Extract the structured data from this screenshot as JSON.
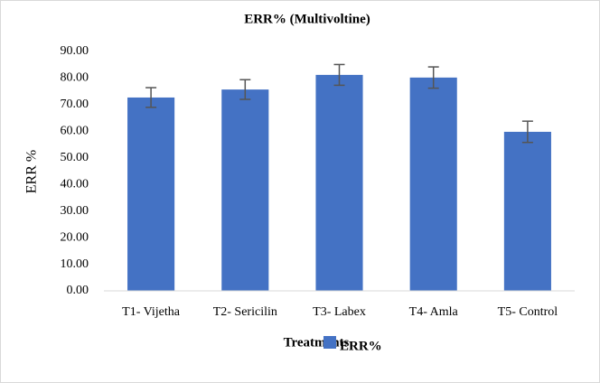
{
  "chart_data": {
    "type": "bar",
    "title": "ERR% (Multivoltine)",
    "x_label": "Treatments",
    "y_label": "ERR %",
    "categories": [
      "T1- Vijetha",
      "T2- Sericilin",
      "T3- Labex",
      "T4- Amla",
      "T5- Control"
    ],
    "series": [
      {
        "name": "ERR%",
        "color": "#4472c4",
        "values": [
          72.7,
          75.7,
          81.2,
          80.2,
          59.8
        ],
        "errors": [
          3.7,
          3.7,
          3.9,
          4.0,
          4.0
        ]
      }
    ],
    "ylim": [
      0,
      90
    ],
    "yticks": [
      {
        "value": 0,
        "label": "0.00"
      },
      {
        "value": 10,
        "label": "10.00"
      },
      {
        "value": 20,
        "label": "20.00"
      },
      {
        "value": 30,
        "label": "30.00"
      },
      {
        "value": 40,
        "label": "40.00"
      },
      {
        "value": 50,
        "label": "50.00"
      },
      {
        "value": 60,
        "label": "60.00"
      },
      {
        "value": 70,
        "label": "70.00"
      },
      {
        "value": 80,
        "label": "80.00"
      },
      {
        "value": 90,
        "label": "90.00"
      }
    ],
    "legend": "bottom"
  }
}
